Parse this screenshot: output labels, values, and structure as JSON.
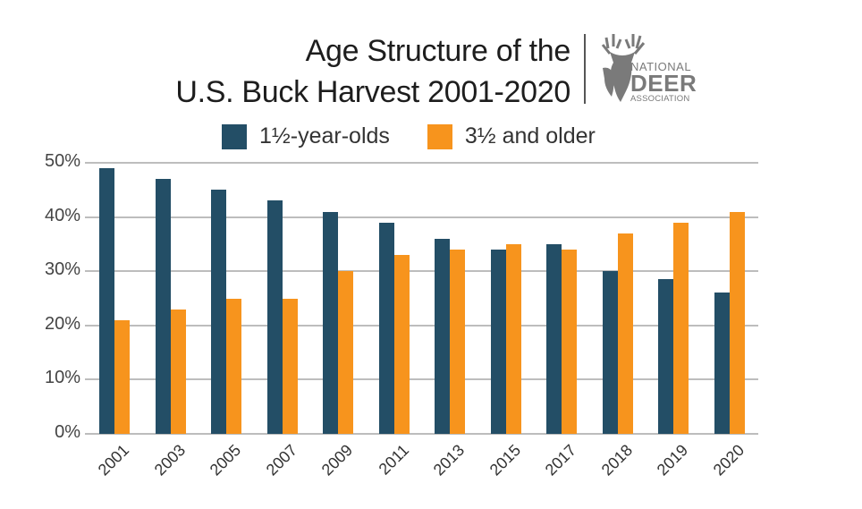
{
  "header": {
    "title_line1": "Age Structure of the",
    "title_line2": "U.S. Buck Harvest 2001-2020"
  },
  "logo": {
    "line1": "NATIONAL",
    "line2": "DEER",
    "line3": "ASSOCIATION",
    "icon": "deer-head-icon"
  },
  "colors": {
    "series1": "#234e66",
    "series2": "#f7941d",
    "grid": "#bdbdbd",
    "logo_gray": "#7a7a7a"
  },
  "chart_data": {
    "type": "bar",
    "title": "Age Structure of the U.S. Buck Harvest 2001-2020",
    "xlabel": "",
    "ylabel": "",
    "categories": [
      "2001",
      "2003",
      "2005",
      "2007",
      "2009",
      "2011",
      "2013",
      "2015",
      "2017",
      "2018",
      "2019",
      "2020"
    ],
    "series": [
      {
        "name": "1½-year-olds",
        "color": "#234e66",
        "values": [
          49,
          47,
          45,
          43,
          41,
          39,
          36,
          34,
          35,
          30,
          28.5,
          26
        ]
      },
      {
        "name": "3½ and older",
        "color": "#f7941d",
        "values": [
          21,
          23,
          25,
          25,
          30,
          33,
          34,
          35,
          34,
          37,
          39,
          41
        ]
      }
    ],
    "yticks": [
      "0%",
      "10%",
      "20%",
      "30%",
      "40%",
      "50%"
    ],
    "ylim": [
      0,
      50
    ],
    "grid": true,
    "legend_position": "top"
  }
}
